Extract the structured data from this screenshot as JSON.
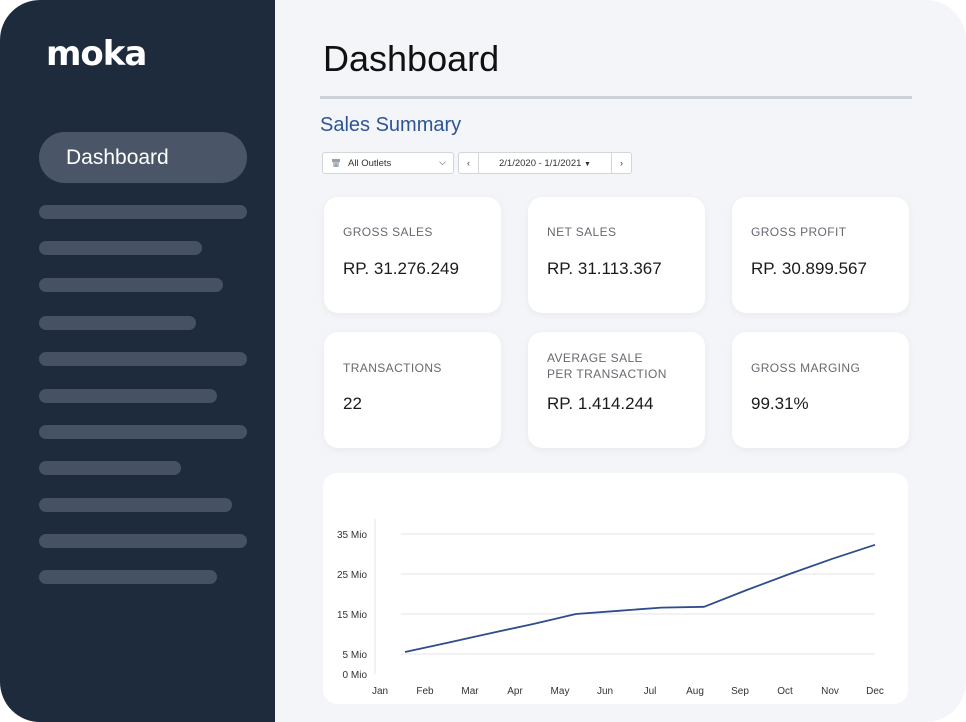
{
  "app": {
    "logo_text": "moka"
  },
  "sidebar": {
    "active_item": "Dashboard"
  },
  "header": {
    "title": "Dashboard"
  },
  "section": {
    "title": "Sales Summary"
  },
  "filters": {
    "outlet_select": "All Outlets",
    "outlet_icon": "store-icon",
    "date_range": "2/1/2020 - 1/1/2021",
    "prev_label": "‹",
    "next_label": "›"
  },
  "cards": [
    {
      "label": "GROSS SALES",
      "value": "RP. 31.276.249"
    },
    {
      "label": "NET SALES",
      "value": "RP. 31.113.367"
    },
    {
      "label": "GROSS PROFIT",
      "value": "RP. 30.899.567"
    },
    {
      "label": "TRANSACTIONS",
      "value": "22"
    },
    {
      "label": "AVERAGE SALE\nPER TRANSACTION",
      "value": "RP. 1.414.244"
    },
    {
      "label": "GROSS MARGING",
      "value": "99.31%"
    }
  ],
  "chart_data": {
    "type": "line",
    "categories": [
      "Jan",
      "Feb",
      "Mar",
      "Apr",
      "May",
      "Jun",
      "Jul",
      "Aug",
      "Sep",
      "Oct",
      "Nov",
      "Dec"
    ],
    "y_tick_labels": [
      "0 Mio",
      "5 Mio",
      "15 Mio",
      "25 Mio",
      "35 Mio"
    ],
    "y_tick_values": [
      0,
      5,
      15,
      25,
      35
    ],
    "ylim": [
      0,
      35
    ],
    "series": [
      {
        "values": [
          5.5,
          7.8,
          10.2,
          12.5,
          15,
          15.8,
          16.6,
          16.8,
          21,
          25,
          28.8,
          32.3
        ],
        "color": "#2e4d8c"
      }
    ],
    "grid": true
  }
}
